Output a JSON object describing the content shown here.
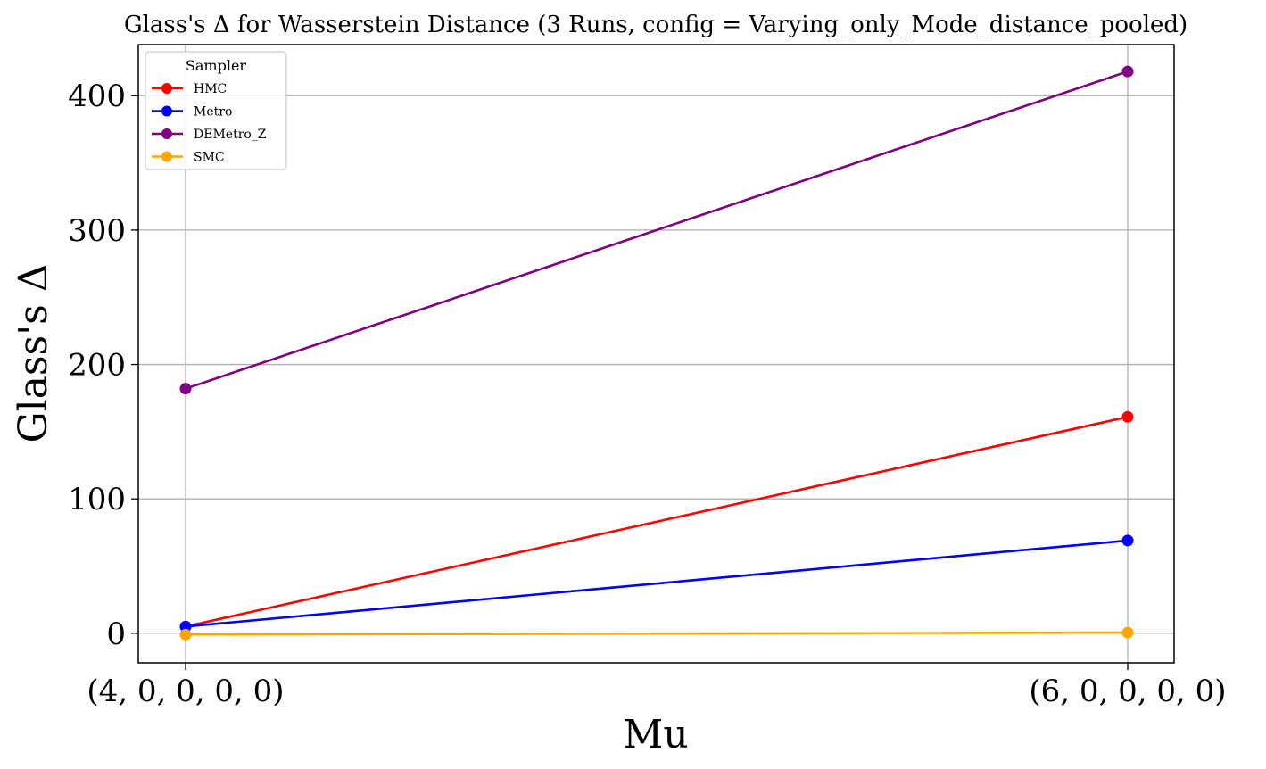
{
  "chart_data": {
    "type": "line",
    "title": "Glass's Δ for Wasserstein Distance (3 Runs, config = Varying_only_Mode_distance_pooled)",
    "xlabel": "Mu",
    "ylabel": "Glass's Δ",
    "categories": [
      "(4, 0, 0, 0, 0)",
      "(6, 0, 0, 0, 0)"
    ],
    "yticks": [
      0,
      100,
      200,
      300,
      400
    ],
    "ylim": [
      -22,
      438
    ],
    "grid": true,
    "legend": {
      "title": "Sampler",
      "position": "top-left"
    },
    "series": [
      {
        "name": "HMC",
        "color": "#ff0000",
        "values": [
          5,
          161
        ]
      },
      {
        "name": "Metro",
        "color": "#0000ff",
        "values": [
          5,
          69
        ]
      },
      {
        "name": "DEMetro_Z",
        "color": "#800080",
        "values": [
          182,
          418
        ]
      },
      {
        "name": "SMC",
        "color": "#ffa500",
        "values": [
          -1,
          0.5
        ]
      }
    ]
  }
}
